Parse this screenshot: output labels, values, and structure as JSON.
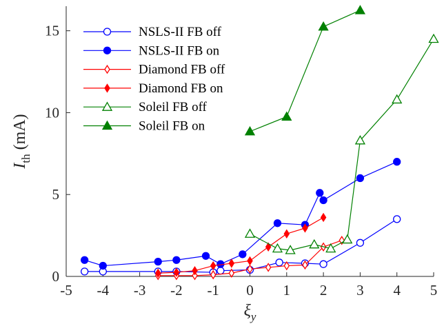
{
  "chart_data": {
    "type": "line",
    "xlabel": "ξ",
    "xlabel_sub": "y",
    "ylabel": "I",
    "ylabel_sub": "th",
    "ylabel_unit": " (mA)",
    "xlim": [
      -5,
      5
    ],
    "ylim": [
      0,
      16.5
    ],
    "xticks": [
      -5,
      -4,
      -3,
      -2,
      -1,
      0,
      1,
      2,
      3,
      4,
      5
    ],
    "yticks": [
      0,
      5,
      10,
      15
    ],
    "grid": false,
    "legend_position": "top-left",
    "series": [
      {
        "name": "NSLS-II FB off",
        "color": "#0000ff",
        "marker": "circle-open",
        "x": [
          -4.5,
          -4,
          -2.5,
          -2,
          -1,
          -0.8,
          0,
          0.8,
          1.5,
          2,
          3,
          4
        ],
        "y": [
          0.3,
          0.3,
          0.3,
          0.3,
          0.25,
          0.35,
          0.4,
          0.85,
          0.8,
          0.75,
          2.05,
          3.5
        ]
      },
      {
        "name": "NSLS-II FB on",
        "color": "#0000ff",
        "marker": "circle-filled",
        "x": [
          -4.5,
          -4,
          -2.5,
          -2,
          -1.2,
          -0.8,
          -0.2,
          0.75,
          1.5,
          1.9,
          2,
          3,
          4
        ],
        "y": [
          1.0,
          0.65,
          0.9,
          1.0,
          1.25,
          0.75,
          1.35,
          3.25,
          3.15,
          5.1,
          4.65,
          6.0,
          7.0
        ]
      },
      {
        "name": "Diamond FB off",
        "color": "#ff0000",
        "marker": "diamond-open",
        "x": [
          -2.5,
          -2,
          -1.5,
          -1,
          -0.5,
          0,
          0.5,
          1,
          1.5,
          2,
          2.5
        ],
        "y": [
          0.05,
          0.05,
          0.05,
          0.1,
          0.2,
          0.45,
          0.55,
          0.65,
          0.7,
          1.8,
          2.2
        ]
      },
      {
        "name": "Diamond FB on",
        "color": "#ff0000",
        "marker": "diamond-filled",
        "x": [
          -2.5,
          -2,
          -1.5,
          -1,
          -0.5,
          0,
          0.5,
          1,
          1.5,
          2
        ],
        "y": [
          0.2,
          0.25,
          0.35,
          0.65,
          0.8,
          0.95,
          1.8,
          2.6,
          2.95,
          3.6
        ]
      },
      {
        "name": "Soleil FB off",
        "color": "#008000",
        "marker": "triangle-open",
        "x": [
          0,
          0.75,
          1.1,
          1.75,
          2.2,
          2.65,
          3,
          4,
          5
        ],
        "y": [
          2.6,
          1.7,
          1.6,
          1.95,
          1.7,
          2.25,
          8.3,
          10.8,
          14.5
        ]
      },
      {
        "name": "Soleil FB on",
        "color": "#008000",
        "marker": "triangle-filled",
        "x": [
          0,
          1,
          2,
          3
        ],
        "y": [
          8.85,
          9.75,
          15.25,
          16.25
        ]
      }
    ]
  }
}
